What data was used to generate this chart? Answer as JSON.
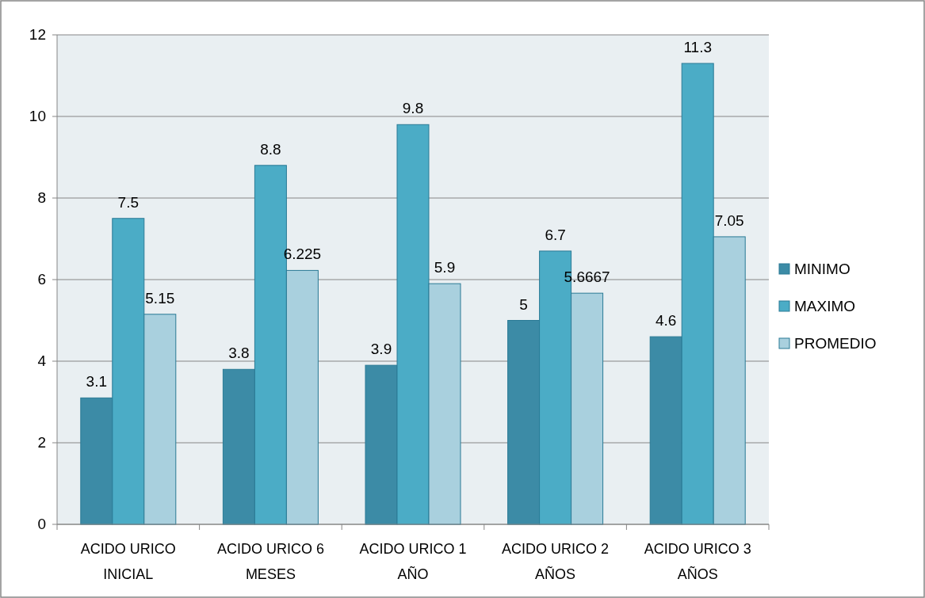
{
  "chart_data": {
    "type": "bar",
    "categories": [
      "ACIDO URICO INICIAL",
      "ACIDO URICO 6 MESES",
      "ACIDO URICO 1 AÑO",
      "ACIDO URICO 2 AÑOS",
      "ACIDO URICO 3 AÑOS"
    ],
    "series": [
      {
        "name": "MINIMO",
        "color": "#3c8ba6",
        "values": [
          3.1,
          3.8,
          3.9,
          5,
          4.6
        ]
      },
      {
        "name": "MAXIMO",
        "color": "#4bacc6",
        "values": [
          7.5,
          8.8,
          9.8,
          6.7,
          11.3
        ]
      },
      {
        "name": "PROMEDIO",
        "color": "#a9d0de",
        "values": [
          5.15,
          6.225,
          5.9,
          5.6667,
          7.05
        ]
      }
    ],
    "ylim": [
      0,
      12
    ],
    "yticks": [
      0,
      2,
      4,
      6,
      8,
      10,
      12
    ],
    "grid": "y",
    "legend": "right",
    "data_labels": true
  }
}
